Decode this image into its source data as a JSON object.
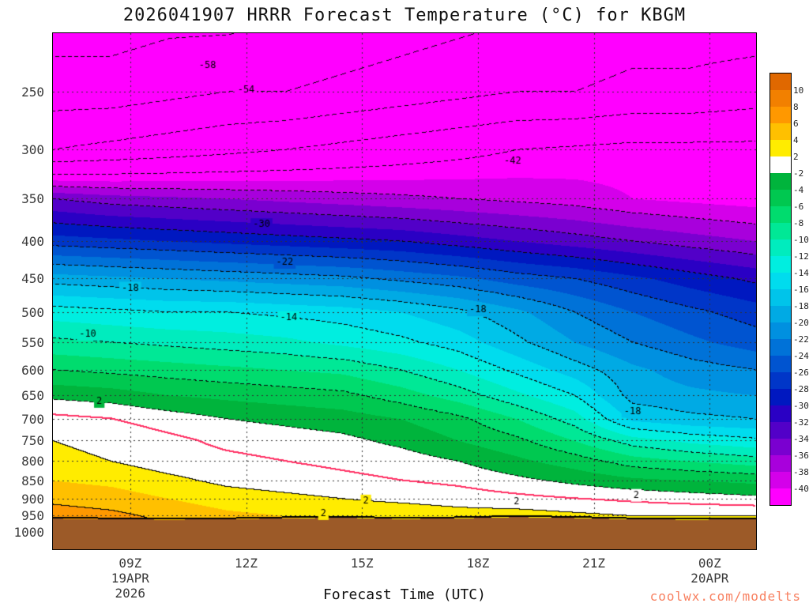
{
  "title": "2026041907 HRRR Forecast Temperature (°C) for KBGM",
  "watermark": {
    "text": "coolwx.com/modelts",
    "color": "#f88060"
  },
  "axes": {
    "x": {
      "label": "Forecast Time (UTC)",
      "range_hours": [
        7,
        25.2
      ],
      "ticks": [
        {
          "hour": 9,
          "label": "09Z"
        },
        {
          "hour": 12,
          "label": "12Z"
        },
        {
          "hour": 15,
          "label": "15Z"
        },
        {
          "hour": 18,
          "label": "18Z"
        },
        {
          "hour": 21,
          "label": "21Z"
        },
        {
          "hour": 24,
          "label": "00Z"
        }
      ],
      "sub_labels": [
        {
          "text": "19APR",
          "tick_index": 0,
          "row": 1
        },
        {
          "text": "2026",
          "tick_index": 0,
          "row": 2
        },
        {
          "text": "20APR",
          "tick_index": 5,
          "row": 1
        }
      ]
    },
    "y": {
      "scale": "log",
      "range": [
        208,
        1056
      ],
      "ticks": [
        250,
        300,
        350,
        400,
        450,
        500,
        550,
        600,
        650,
        700,
        750,
        800,
        850,
        900,
        950,
        1000
      ]
    }
  },
  "colorbar": {
    "colors_top_to_bottom": [
      "#e06800",
      "#f28000",
      "#ff9800",
      "#ffc000",
      "#ffec00",
      "#ffffff",
      "#00b43c",
      "#00c850",
      "#00dc6e",
      "#00e896",
      "#00ecbe",
      "#00eee0",
      "#00dcee",
      "#00c4ea",
      "#00aae4",
      "#0090e0",
      "#0072d8",
      "#0054d0",
      "#0036c8",
      "#0018c0",
      "#2a00c4",
      "#5200c8",
      "#7a00d0",
      "#a800dc",
      "#d400ea",
      "#ff00ff"
    ],
    "tick_labels_top_to_bottom": [
      "10",
      "8",
      "6",
      "4",
      "2",
      "-2",
      "-4",
      "-6",
      "-8",
      "-10",
      "-12",
      "-14",
      "-16",
      "-18",
      "-20",
      "-22",
      "-24",
      "-26",
      "-28",
      "-30",
      "-32",
      "-34",
      "-36",
      "-38",
      "-40"
    ]
  },
  "chart_data": {
    "type": "heatmap",
    "title": "2026041907 HRRR Forecast Temperature (°C) for KBGM",
    "xlabel": "Forecast Time (UTC)",
    "ylabel": "",
    "x_range_hours_utc": [
      7,
      25.2
    ],
    "pressure_range_hpa": [
      208,
      1056
    ],
    "contour_interval_c": 4,
    "fill_interval_c": 2,
    "x_hours_utc": [
      7,
      8.5,
      10,
      11.5,
      13,
      14.5,
      16,
      17.5,
      19,
      20.5,
      22,
      23.5,
      25.2
    ],
    "pressure_levels": [
      200,
      250,
      300,
      350,
      400,
      450,
      500,
      550,
      600,
      650,
      700,
      750,
      800,
      850,
      900,
      950,
      1000,
      1060
    ],
    "temperature_c": [
      [
        -60,
        -60,
        -59,
        -59,
        -58,
        -57,
        -56,
        -55,
        -54,
        -53,
        -52,
        -52,
        -52
      ],
      [
        -56,
        -56,
        -55,
        -54,
        -54,
        -53,
        -52,
        -51,
        -50,
        -50,
        -49,
        -49,
        -48
      ],
      [
        -50,
        -49,
        -48,
        -47,
        -46,
        -45,
        -44,
        -43,
        -42,
        -41.5,
        -41,
        -41,
        -41
      ],
      [
        -34,
        -35,
        -35.5,
        -36,
        -36.5,
        -37,
        -37.5,
        -38,
        -38.5,
        -39,
        -40,
        -40.5,
        -41
      ],
      [
        -27,
        -27.5,
        -28,
        -28.5,
        -29,
        -29.5,
        -30,
        -31,
        -32,
        -33,
        -34,
        -35,
        -36
      ],
      [
        -19,
        -19.5,
        -20,
        -20.5,
        -21,
        -21.5,
        -22.5,
        -23.5,
        -25,
        -26,
        -27.5,
        -29,
        -30.5
      ],
      [
        -13,
        -13.5,
        -14,
        -14,
        -14.5,
        -15,
        -16,
        -17.5,
        -19.5,
        -22,
        -24,
        -25.5,
        -27
      ],
      [
        -9.5,
        -10,
        -10.5,
        -11,
        -11.5,
        -12.5,
        -13.5,
        -15,
        -17.5,
        -20,
        -22,
        -23.5,
        -25
      ],
      [
        -6,
        -6.5,
        -7,
        -7.5,
        -8,
        -8.5,
        -10,
        -12,
        -14.5,
        -17,
        -19.5,
        -21,
        -22
      ],
      [
        -2.5,
        -3,
        -4,
        -4.5,
        -5,
        -5.5,
        -7,
        -9,
        -11.5,
        -14,
        -18.8,
        -19.5,
        -20
      ],
      [
        0.5,
        0,
        -1,
        -2,
        -2.5,
        -3,
        -4,
        -5.5,
        -8,
        -11,
        -16.5,
        -17.5,
        -18
      ],
      [
        2,
        1.5,
        0.5,
        -0.5,
        -1,
        -1.5,
        -2.5,
        -4,
        -5.5,
        -8,
        -11,
        -12.5,
        -13.5
      ],
      [
        2.5,
        2,
        1,
        0.5,
        0,
        -0.5,
        -1,
        -2,
        -3.5,
        -5,
        -7,
        -8,
        -9
      ],
      [
        4,
        3.5,
        2.5,
        1.5,
        1,
        0.5,
        0,
        -0.5,
        -1.5,
        -2.5,
        -3.5,
        -4,
        -4.5
      ],
      [
        5.5,
        5,
        4,
        3,
        2.5,
        2,
        1.5,
        1,
        0.5,
        0,
        -0.5,
        -1,
        -1.5
      ],
      [
        7,
        6.5,
        5.5,
        4.5,
        4,
        3.5,
        3.5,
        3,
        3,
        2.5,
        2,
        2,
        2
      ],
      [
        8,
        7.5,
        6.5,
        5.5,
        5,
        4.5,
        4.5,
        4,
        4,
        3.5,
        3,
        3,
        3
      ],
      [
        8,
        7.5,
        6.5,
        5.5,
        5,
        4.5,
        4.5,
        4,
        4,
        3.5,
        3,
        3,
        3
      ]
    ],
    "surface_pressure_hpa": [
      958,
      960,
      961,
      960,
      957,
      955,
      959,
      957,
      953,
      956,
      960,
      961,
      960
    ],
    "below_ground_color": "#9c5a28",
    "zero_line_color": "#ff3366",
    "contour_color": "#000000",
    "grid_dot_color": "#323232",
    "contour_labels": [
      {
        "text": "-58",
        "t": 11.0,
        "p": 230
      },
      {
        "text": "-54",
        "t": 12.0,
        "p": 249
      },
      {
        "text": "-42",
        "t": 18.9,
        "p": 311
      },
      {
        "text": "-30",
        "t": 12.4,
        "p": 380
      },
      {
        "text": "-22",
        "t": 13.0,
        "p": 428
      },
      {
        "text": "-18",
        "t": 9.0,
        "p": 464
      },
      {
        "text": "-18",
        "t": 18.0,
        "p": 497
      },
      {
        "text": "-18",
        "t": 22.0,
        "p": 684
      },
      {
        "text": "-14",
        "t": 13.1,
        "p": 509
      },
      {
        "text": "-10",
        "t": 7.9,
        "p": 537
      },
      {
        "text": "2",
        "t": 8.2,
        "p": 663
      },
      {
        "text": "2",
        "t": 14.0,
        "p": 944
      },
      {
        "text": "2",
        "t": 15.1,
        "p": 907
      },
      {
        "text": "2",
        "t": 19.0,
        "p": 909
      },
      {
        "text": "2",
        "t": 22.1,
        "p": 891
      }
    ]
  }
}
